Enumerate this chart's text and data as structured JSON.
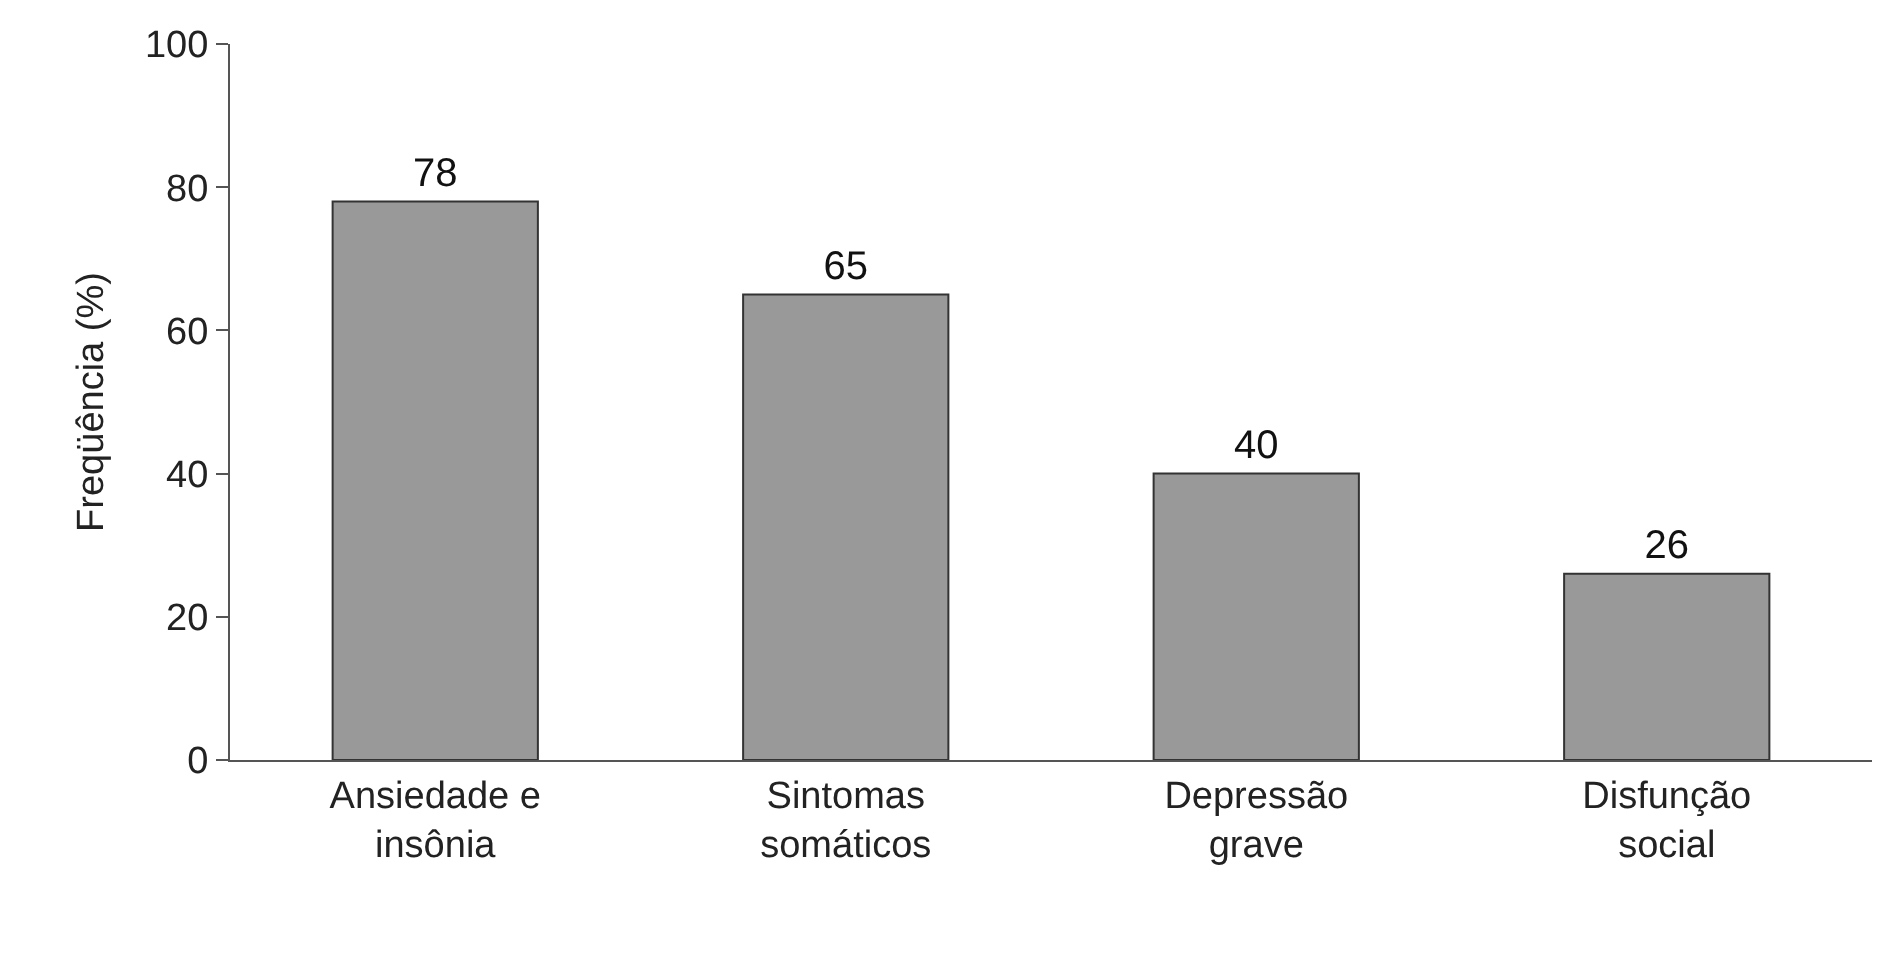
{
  "chart_data": {
    "type": "bar",
    "ylabel": "Freqüência (%)",
    "categories": [
      "Ansiedade e\ninsônia",
      "Sintomas\nsomáticos",
      "Depressão\ngrave",
      "Disfunção\nsocial"
    ],
    "values": [
      78,
      65,
      40,
      26
    ],
    "color": "#999999",
    "ylim": [
      0,
      100
    ],
    "yticks": [
      0,
      20,
      40,
      60,
      80,
      100
    ],
    "data_labels": true
  }
}
